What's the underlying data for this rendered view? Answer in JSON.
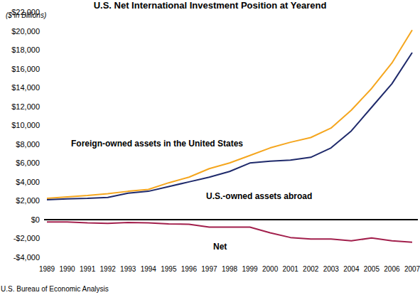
{
  "chart_data": {
    "type": "line",
    "title": "U.S. Net International Investment Position at Yearend",
    "subtitle": "($ in Billions)",
    "source": "U.S. Bureau of Economic Analysis",
    "categories": [
      "1989",
      "1990",
      "1991",
      "1992",
      "1993",
      "1994",
      "1995",
      "1996",
      "1997",
      "1998",
      "1999",
      "2000",
      "2001",
      "2002",
      "2003",
      "2004",
      "2005",
      "2006",
      "2007"
    ],
    "series": [
      {
        "name": "Foreign-owned assets in the United States",
        "color": "#f5a61e",
        "values": [
          2250,
          2400,
          2550,
          2750,
          3000,
          3200,
          3900,
          4500,
          5400,
          6000,
          6800,
          7600,
          8200,
          8700,
          9700,
          11600,
          13900,
          16600,
          20100
        ]
      },
      {
        "name": "U.S.-owned assets abroad",
        "color": "#1f2a6b",
        "values": [
          2100,
          2200,
          2250,
          2350,
          2800,
          3000,
          3500,
          4000,
          4500,
          5100,
          6000,
          6200,
          6300,
          6600,
          7600,
          9400,
          11900,
          14400,
          17700
        ]
      },
      {
        "name": "Net",
        "color": "#a21f4c",
        "values": [
          -250,
          -250,
          -350,
          -400,
          -300,
          -350,
          -450,
          -500,
          -800,
          -800,
          -800,
          -1400,
          -1900,
          -2050,
          -2050,
          -2250,
          -1950,
          -2250,
          -2400
        ]
      }
    ],
    "ylim": [
      -4000,
      22000
    ],
    "yticks": [
      {
        "value": -4000,
        "label": "-$4,000"
      },
      {
        "value": -2000,
        "label": "-$2,000"
      },
      {
        "value": 0,
        "label": "$0"
      },
      {
        "value": 2000,
        "label": "$2,000"
      },
      {
        "value": 4000,
        "label": "$4,000"
      },
      {
        "value": 6000,
        "label": "$6,000"
      },
      {
        "value": 8000,
        "label": "$8,000"
      },
      {
        "value": 10000,
        "label": "$10,000"
      },
      {
        "value": 12000,
        "label": "$12,000"
      },
      {
        "value": 14000,
        "label": "$14,000"
      },
      {
        "value": 16000,
        "label": "$16,000"
      },
      {
        "value": 18000,
        "label": "$18,000"
      },
      {
        "value": 20000,
        "label": "$20,000"
      },
      {
        "value": 22000,
        "label": "$22,000"
      }
    ],
    "grid": false
  }
}
